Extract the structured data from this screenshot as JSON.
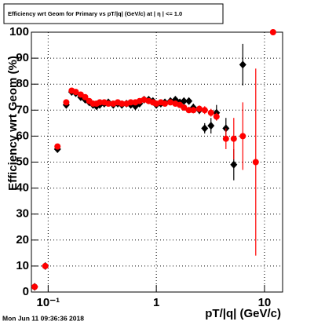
{
  "chart_data": {
    "type": "scatter",
    "title": "Efficiency wrt Geom for Primary vs pT/|q| (GeV/c) at | η | <= 1.0",
    "xlabel": "pT/|q| (GeV/c)",
    "ylabel": "Efficiency wrt Geom (%)",
    "footer": "Mon Jun 11 09:36:36 2018",
    "xscale": "log",
    "grid": true,
    "xlim": [
      0.07,
      14.7
    ],
    "ylim": [
      0,
      100
    ],
    "xticks": [
      {
        "value": 0.1,
        "label": "10⁻¹"
      },
      1,
      10
    ],
    "yticks": [
      0,
      10,
      20,
      30,
      40,
      50,
      60,
      70,
      80,
      90,
      100
    ],
    "x": [
      0.075,
      0.094,
      0.122,
      0.147,
      0.165,
      0.18,
      0.2,
      0.22,
      0.24,
      0.26,
      0.28,
      0.3,
      0.33,
      0.36,
      0.4,
      0.44,
      0.48,
      0.53,
      0.58,
      0.64,
      0.7,
      0.77,
      0.85,
      0.93,
      1.0,
      1.1,
      1.2,
      1.35,
      1.5,
      1.65,
      1.8,
      2.0,
      2.2,
      2.5,
      2.8,
      3.2,
      3.6,
      4.4,
      5.2,
      6.3,
      8.3,
      12
    ],
    "series": [
      {
        "color": "#000000",
        "marker": "diamond",
        "values": [
          2,
          10,
          55,
          72,
          77,
          76.5,
          75,
          74,
          73,
          72,
          71.5,
          72,
          72.5,
          73,
          72,
          72.5,
          72,
          72.5,
          72,
          71.5,
          72.5,
          74,
          74,
          73.5,
          72,
          72.5,
          73,
          73.5,
          74,
          73,
          73.5,
          73.5,
          71,
          70,
          63,
          64,
          69,
          63,
          49,
          87.5,
          null,
          null
        ],
        "errors": [
          0.3,
          0.5,
          1,
          1,
          0.5,
          0.5,
          0.5,
          0.5,
          0.5,
          0.5,
          0.5,
          0.5,
          0.5,
          0.5,
          0.5,
          0.5,
          0.5,
          0.5,
          0.5,
          0.5,
          0.5,
          0.5,
          0.5,
          0.5,
          0.5,
          0.6,
          0.6,
          0.7,
          0.8,
          0.9,
          1,
          1,
          1.5,
          1.5,
          2,
          3,
          3,
          4,
          6,
          8,
          null,
          null
        ]
      },
      {
        "color": "#ff0000",
        "marker": "circle",
        "values": [
          2,
          10,
          56,
          73,
          77.5,
          77,
          76,
          75,
          73.5,
          72.5,
          72.5,
          73,
          73,
          72.5,
          72.5,
          73,
          72.5,
          72.5,
          73,
          73,
          73.5,
          74,
          73.5,
          73,
          72.5,
          73,
          72.5,
          73,
          72.5,
          72,
          71,
          70,
          70,
          70.5,
          70,
          69,
          67.5,
          59,
          59,
          60,
          50,
          100
        ],
        "errors": [
          0.3,
          0.5,
          1,
          1,
          0.5,
          0.5,
          0.5,
          0.5,
          0.5,
          0.5,
          0.5,
          0.5,
          0.5,
          0.5,
          0.5,
          0.5,
          0.5,
          0.5,
          0.5,
          0.5,
          0.5,
          0.5,
          0.5,
          0.5,
          0.5,
          0.6,
          0.6,
          0.7,
          0.8,
          0.9,
          1,
          1,
          1.2,
          1.3,
          1.5,
          1.5,
          1.5,
          4,
          8,
          13,
          36,
          0
        ]
      }
    ]
  }
}
